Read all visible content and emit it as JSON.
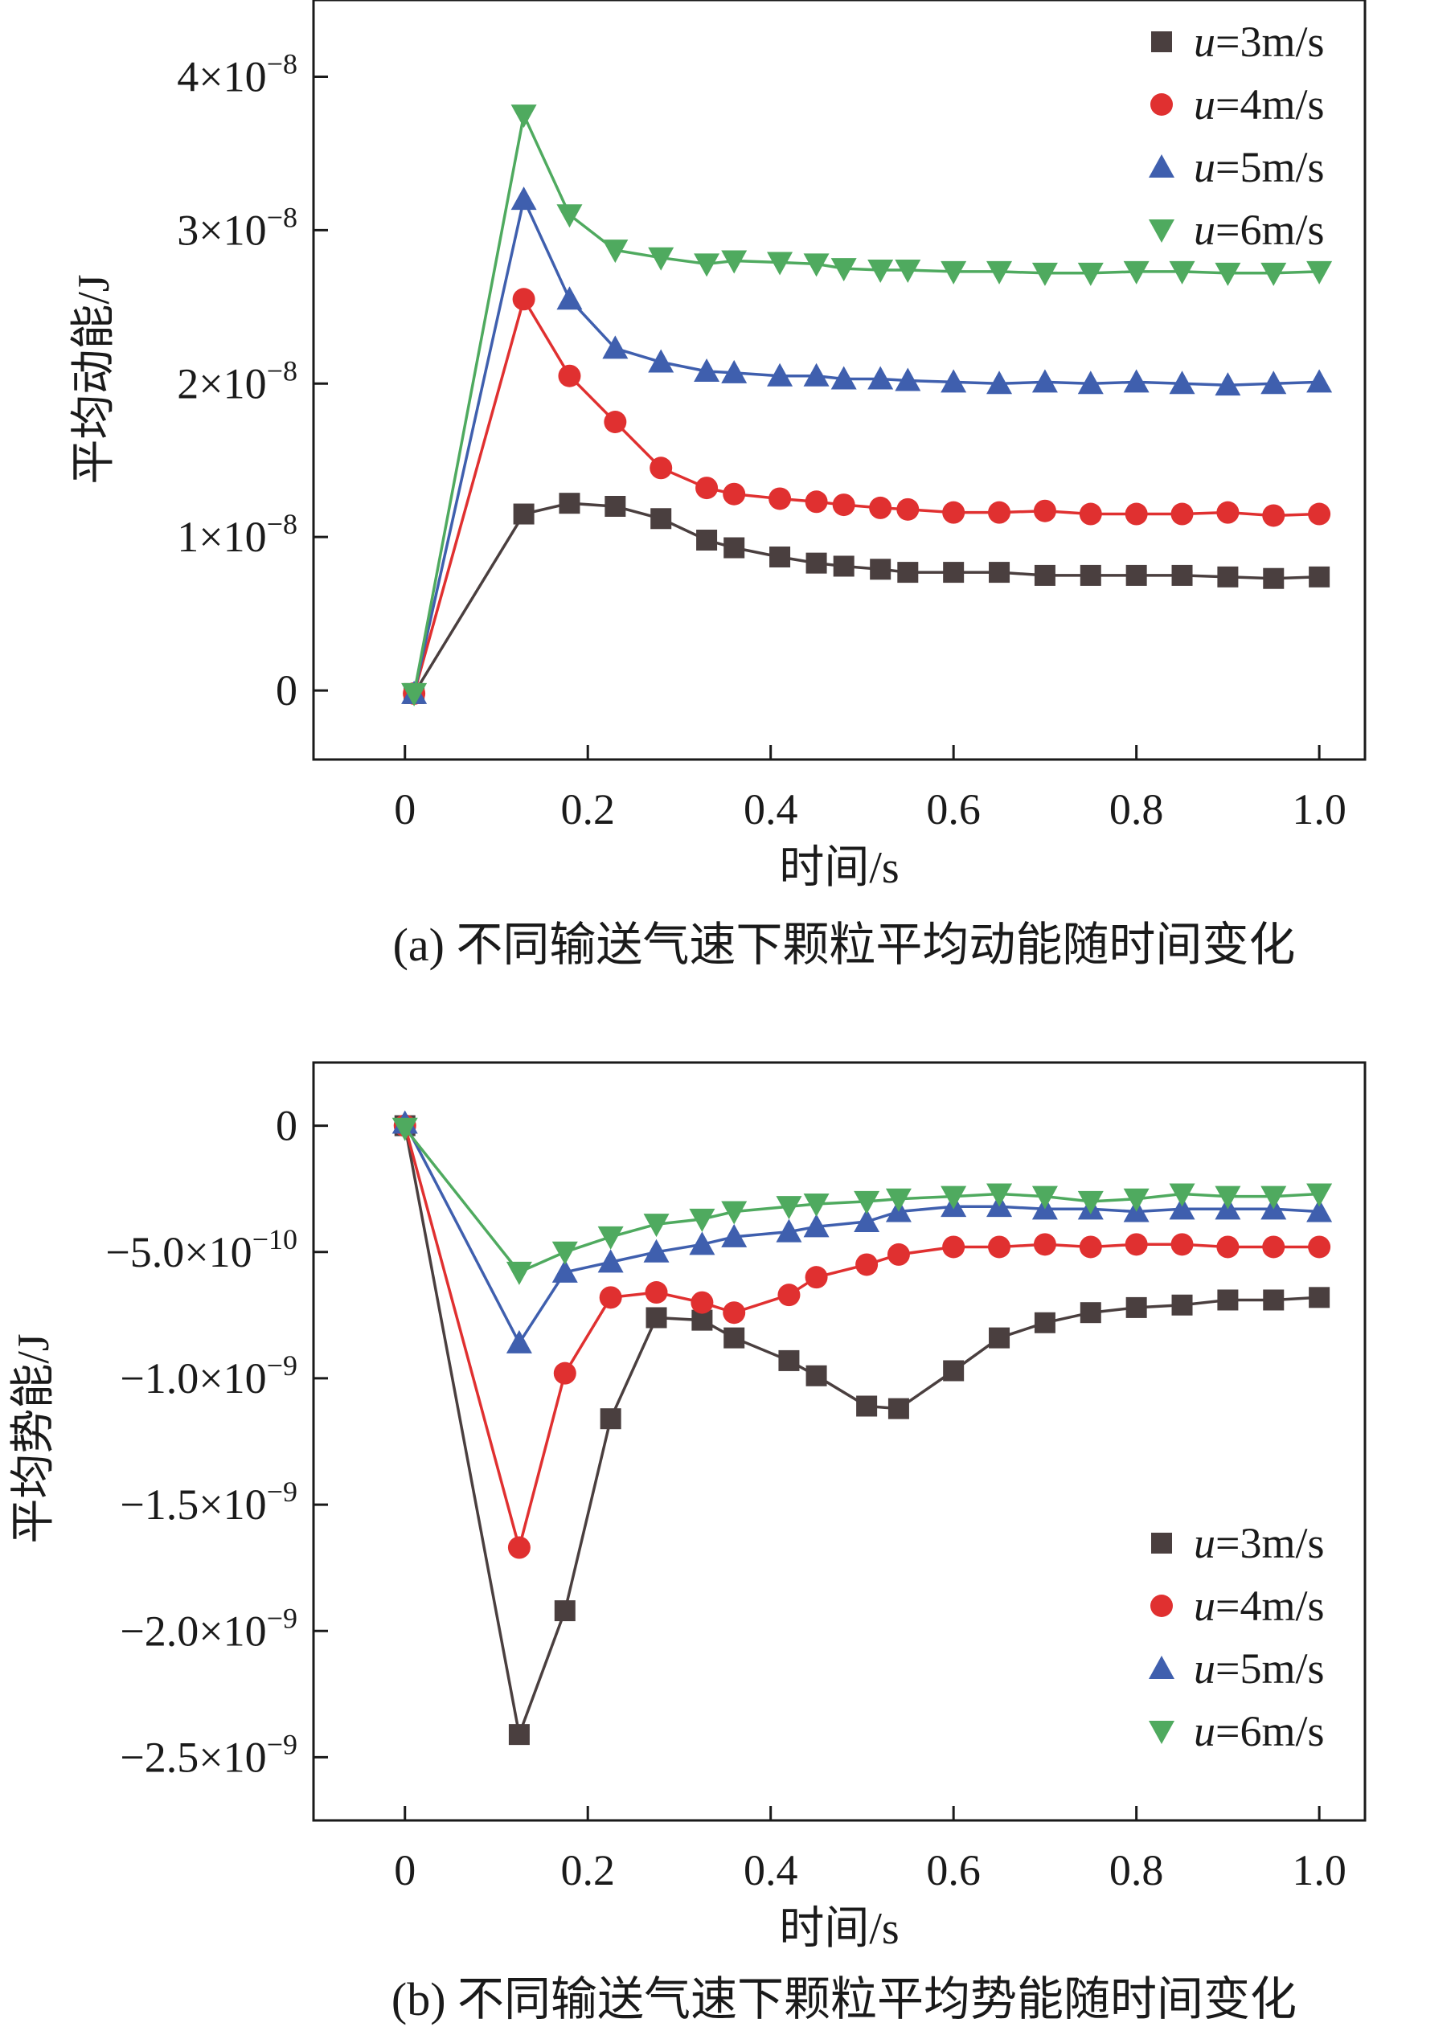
{
  "chart_data": [
    {
      "type": "line",
      "title": "",
      "caption": "(a) 不同输送气速下颗粒平均动能随时间变化",
      "xlabel": "时间/s",
      "ylabel": "平均动能/J",
      "xlim": [
        -0.1,
        1.05
      ],
      "ylim": [
        -4.5e-09,
        4.5e-08
      ],
      "xticks": [
        {
          "value": 0,
          "label": "0"
        },
        {
          "value": 0.2,
          "label": "0.2"
        },
        {
          "value": 0.4,
          "label": "0.4"
        },
        {
          "value": 0.6,
          "label": "0.6"
        },
        {
          "value": 0.8,
          "label": "0.8"
        },
        {
          "value": 1.0,
          "label": "1.0"
        }
      ],
      "yticks": [
        {
          "value": 0,
          "label": "0",
          "mantissa": "0",
          "exponent": ""
        },
        {
          "value": 1e-08,
          "label": "1×10−8",
          "mantissa": "1×10",
          "exponent": "−8"
        },
        {
          "value": 2e-08,
          "label": "2×10−8",
          "mantissa": "2×10",
          "exponent": "−8"
        },
        {
          "value": 3e-08,
          "label": "3×10−8",
          "mantissa": "3×10",
          "exponent": "−8"
        },
        {
          "value": 4e-08,
          "label": "4×10−8",
          "mantissa": "4×10",
          "exponent": "−8"
        }
      ],
      "legend_position": "top-right",
      "x": [
        0.01,
        0.13,
        0.18,
        0.23,
        0.28,
        0.33,
        0.36,
        0.41,
        0.45,
        0.48,
        0.52,
        0.55,
        0.6,
        0.65,
        0.7,
        0.75,
        0.8,
        0.85,
        0.9,
        0.95,
        1.0
      ],
      "series": [
        {
          "name": "u=3m/s",
          "var": "u",
          "suffix": "=3m/s",
          "color": "#4a3f3f",
          "marker": "square",
          "values": [
            -2e-10,
            1.15e-08,
            1.22e-08,
            1.2e-08,
            1.12e-08,
            9.8e-09,
            9.3e-09,
            8.7e-09,
            8.3e-09,
            8.1e-09,
            7.9e-09,
            7.7e-09,
            7.7e-09,
            7.7e-09,
            7.5e-09,
            7.5e-09,
            7.5e-09,
            7.5e-09,
            7.4e-09,
            7.3e-09,
            7.4e-09
          ]
        },
        {
          "name": "u=4m/s",
          "var": "u",
          "suffix": "=4m/s",
          "color": "#e03030",
          "marker": "circle",
          "values": [
            -2e-10,
            2.55e-08,
            2.05e-08,
            1.75e-08,
            1.45e-08,
            1.32e-08,
            1.28e-08,
            1.25e-08,
            1.23e-08,
            1.21e-08,
            1.19e-08,
            1.18e-08,
            1.16e-08,
            1.16e-08,
            1.17e-08,
            1.15e-08,
            1.15e-08,
            1.15e-08,
            1.16e-08,
            1.14e-08,
            1.15e-08
          ]
        },
        {
          "name": "u=5m/s",
          "var": "u",
          "suffix": "=5m/s",
          "color": "#3f5fae",
          "marker": "triangle-up",
          "values": [
            -2e-10,
            3.2e-08,
            2.55e-08,
            2.23e-08,
            2.14e-08,
            2.08e-08,
            2.07e-08,
            2.05e-08,
            2.05e-08,
            2.03e-08,
            2.03e-08,
            2.02e-08,
            2.01e-08,
            2e-08,
            2.01e-08,
            2e-08,
            2.01e-08,
            2e-08,
            1.99e-08,
            2e-08,
            2.01e-08
          ]
        },
        {
          "name": "u=6m/s",
          "var": "u",
          "suffix": "=6m/s",
          "color": "#4faa5f",
          "marker": "triangle-down",
          "values": [
            -2e-10,
            3.75e-08,
            3.1e-08,
            2.87e-08,
            2.82e-08,
            2.78e-08,
            2.8e-08,
            2.79e-08,
            2.78e-08,
            2.75e-08,
            2.74e-08,
            2.74e-08,
            2.73e-08,
            2.73e-08,
            2.72e-08,
            2.72e-08,
            2.73e-08,
            2.73e-08,
            2.72e-08,
            2.72e-08,
            2.73e-08
          ]
        }
      ]
    },
    {
      "type": "line",
      "title": "",
      "caption": "(b) 不同输送气速下颗粒平均势能随时间变化",
      "xlabel": "时间/s",
      "ylabel": "平均势能/J",
      "xlim": [
        -0.1,
        1.05
      ],
      "ylim": [
        -2.75e-09,
        2.5e-10
      ],
      "xticks": [
        {
          "value": 0,
          "label": "0"
        },
        {
          "value": 0.2,
          "label": "0.2"
        },
        {
          "value": 0.4,
          "label": "0.4"
        },
        {
          "value": 0.6,
          "label": "0.6"
        },
        {
          "value": 0.8,
          "label": "0.8"
        },
        {
          "value": 1.0,
          "label": "1.0"
        }
      ],
      "yticks": [
        {
          "value": 0,
          "label": "0",
          "mantissa": "0",
          "exponent": ""
        },
        {
          "value": -5e-10,
          "label": "−5.0×10−10",
          "mantissa": "−5.0×10",
          "exponent": "−10"
        },
        {
          "value": -1e-09,
          "label": "−1.0×10−9",
          "mantissa": "−1.0×10",
          "exponent": "−9"
        },
        {
          "value": -1.5e-09,
          "label": "−1.5×10−9",
          "mantissa": "−1.5×10",
          "exponent": "−9"
        },
        {
          "value": -2e-09,
          "label": "−2.0×10−9",
          "mantissa": "−2.0×10",
          "exponent": "−9"
        },
        {
          "value": -2.5e-09,
          "label": "−2.5×10−9",
          "mantissa": "−2.5×10",
          "exponent": "−9"
        }
      ],
      "legend_position": "bottom-right",
      "x": [
        0.0,
        0.125,
        0.175,
        0.225,
        0.275,
        0.325,
        0.36,
        0.42,
        0.45,
        0.505,
        0.54,
        0.6,
        0.65,
        0.7,
        0.75,
        0.8,
        0.85,
        0.9,
        0.95,
        1.0
      ],
      "series": [
        {
          "name": "u=3m/s",
          "var": "u",
          "suffix": "=3m/s",
          "color": "#4a3f3f",
          "marker": "square",
          "values": [
            0.0,
            -2.41e-09,
            -1.92e-09,
            -1.16e-09,
            -7.6e-10,
            -7.7e-10,
            -8.4e-10,
            -9.3e-10,
            -9.9e-10,
            -1.11e-09,
            -1.12e-09,
            -9.7e-10,
            -8.4e-10,
            -7.8e-10,
            -7.4e-10,
            -7.2e-10,
            -7.1e-10,
            -6.9e-10,
            -6.9e-10,
            -6.8e-10
          ]
        },
        {
          "name": "u=4m/s",
          "var": "u",
          "suffix": "=4m/s",
          "color": "#e03030",
          "marker": "circle",
          "values": [
            0.0,
            -1.67e-09,
            -9.8e-10,
            -6.8e-10,
            -6.6e-10,
            -7e-10,
            -7.4e-10,
            -6.7e-10,
            -6e-10,
            -5.5e-10,
            -5.1e-10,
            -4.8e-10,
            -4.8e-10,
            -4.7e-10,
            -4.8e-10,
            -4.7e-10,
            -4.7e-10,
            -4.8e-10,
            -4.8e-10,
            -4.8e-10
          ]
        },
        {
          "name": "u=5m/s",
          "var": "u",
          "suffix": "=5m/s",
          "color": "#3f5fae",
          "marker": "triangle-up",
          "values": [
            1e-11,
            -8.6e-10,
            -5.8e-10,
            -5.4e-10,
            -5e-10,
            -4.7e-10,
            -4.4e-10,
            -4.2e-10,
            -4e-10,
            -3.8e-10,
            -3.4e-10,
            -3.2e-10,
            -3.2e-10,
            -3.3e-10,
            -3.3e-10,
            -3.4e-10,
            -3.3e-10,
            -3.3e-10,
            -3.3e-10,
            -3.4e-10
          ]
        },
        {
          "name": "u=6m/s",
          "var": "u",
          "suffix": "=6m/s",
          "color": "#4faa5f",
          "marker": "triangle-down",
          "values": [
            -1e-11,
            -5.8e-10,
            -5e-10,
            -4.4e-10,
            -3.9e-10,
            -3.7e-10,
            -3.4e-10,
            -3.2e-10,
            -3.1e-10,
            -3e-10,
            -2.9e-10,
            -2.8e-10,
            -2.7e-10,
            -2.8e-10,
            -3e-10,
            -2.9e-10,
            -2.7e-10,
            -2.8e-10,
            -2.8e-10,
            -2.7e-10
          ]
        }
      ]
    }
  ]
}
